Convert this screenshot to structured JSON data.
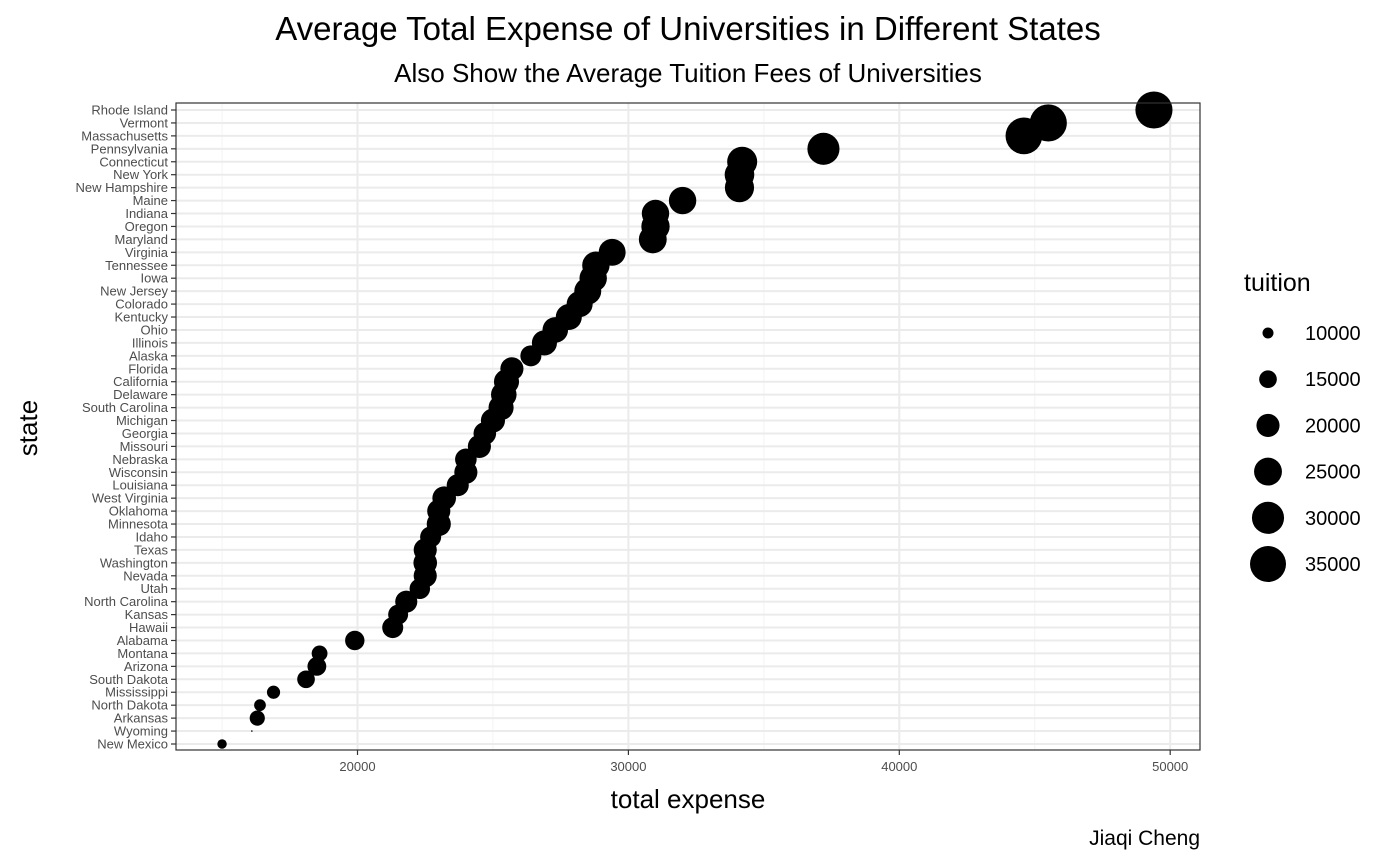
{
  "chart_data": {
    "type": "scatter",
    "title": "Average Total Expense of Universities in Different States",
    "subtitle": "Also Show the Average Tuition Fees of Universities",
    "xlabel": "total expense",
    "ylabel": "state",
    "caption": "Jiaqi Cheng",
    "xlim": [
      13300,
      51100
    ],
    "x_ticks": [
      20000,
      30000,
      40000,
      50000
    ],
    "x_tick_labels": [
      "20000",
      "30000",
      "40000",
      "50000"
    ],
    "grid": true,
    "size_legend": {
      "title": "tuition",
      "position": "right",
      "values": [
        10000,
        15000,
        20000,
        25000,
        30000,
        35000
      ],
      "labels": [
        "10000",
        "15000",
        "20000",
        "25000",
        "30000",
        "35000"
      ]
    },
    "points": [
      {
        "state": "New Mexico",
        "total_expense": 15000,
        "tuition": 9000
      },
      {
        "state": "Wyoming",
        "total_expense": 16100,
        "tuition": 5000
      },
      {
        "state": "Arkansas",
        "total_expense": 16300,
        "tuition": 13000
      },
      {
        "state": "North Dakota",
        "total_expense": 16400,
        "tuition": 10500
      },
      {
        "state": "Mississippi",
        "total_expense": 16900,
        "tuition": 11500
      },
      {
        "state": "South Dakota",
        "total_expense": 18100,
        "tuition": 15000
      },
      {
        "state": "Arizona",
        "total_expense": 18500,
        "tuition": 16000
      },
      {
        "state": "Montana",
        "total_expense": 18600,
        "tuition": 13500
      },
      {
        "state": "Alabama",
        "total_expense": 19900,
        "tuition": 16500
      },
      {
        "state": "Hawaii",
        "total_expense": 21300,
        "tuition": 18000
      },
      {
        "state": "Kansas",
        "total_expense": 21500,
        "tuition": 17000
      },
      {
        "state": "North Carolina",
        "total_expense": 21800,
        "tuition": 19000
      },
      {
        "state": "Utah",
        "total_expense": 22300,
        "tuition": 17500
      },
      {
        "state": "Nevada",
        "total_expense": 22500,
        "tuition": 20000
      },
      {
        "state": "Washington",
        "total_expense": 22500,
        "tuition": 20500
      },
      {
        "state": "Texas",
        "total_expense": 22500,
        "tuition": 20000
      },
      {
        "state": "Idaho",
        "total_expense": 22700,
        "tuition": 18000
      },
      {
        "state": "Minnesota",
        "total_expense": 23000,
        "tuition": 21000
      },
      {
        "state": "Oklahoma",
        "total_expense": 23000,
        "tuition": 20000
      },
      {
        "state": "West Virginia",
        "total_expense": 23200,
        "tuition": 20500
      },
      {
        "state": "Louisiana",
        "total_expense": 23700,
        "tuition": 19000
      },
      {
        "state": "Wisconsin",
        "total_expense": 24000,
        "tuition": 20000
      },
      {
        "state": "Nebraska",
        "total_expense": 24000,
        "tuition": 18500
      },
      {
        "state": "Missouri",
        "total_expense": 24500,
        "tuition": 20000
      },
      {
        "state": "Georgia",
        "total_expense": 24700,
        "tuition": 19500
      },
      {
        "state": "Michigan",
        "total_expense": 25000,
        "tuition": 21000
      },
      {
        "state": "South Carolina",
        "total_expense": 25300,
        "tuition": 22000
      },
      {
        "state": "Delaware",
        "total_expense": 25400,
        "tuition": 22500
      },
      {
        "state": "California",
        "total_expense": 25500,
        "tuition": 22000
      },
      {
        "state": "Florida",
        "total_expense": 25700,
        "tuition": 20000
      },
      {
        "state": "Alaska",
        "total_expense": 26400,
        "tuition": 18000
      },
      {
        "state": "Illinois",
        "total_expense": 26900,
        "tuition": 22000
      },
      {
        "state": "Ohio",
        "total_expense": 27300,
        "tuition": 22500
      },
      {
        "state": "Kentucky",
        "total_expense": 27800,
        "tuition": 23000
      },
      {
        "state": "Colorado",
        "total_expense": 28200,
        "tuition": 23000
      },
      {
        "state": "New Jersey",
        "total_expense": 28500,
        "tuition": 24000
      },
      {
        "state": "Iowa",
        "total_expense": 28700,
        "tuition": 24500
      },
      {
        "state": "Tennessee",
        "total_expense": 28800,
        "tuition": 24500
      },
      {
        "state": "Virginia",
        "total_expense": 29400,
        "tuition": 24000
      },
      {
        "state": "Maryland",
        "total_expense": 30900,
        "tuition": 25000
      },
      {
        "state": "Oregon",
        "total_expense": 31000,
        "tuition": 25500
      },
      {
        "state": "Indiana",
        "total_expense": 31000,
        "tuition": 24500
      },
      {
        "state": "Maine",
        "total_expense": 32000,
        "tuition": 24500
      },
      {
        "state": "New Hampshire",
        "total_expense": 34100,
        "tuition": 26500
      },
      {
        "state": "New York",
        "total_expense": 34100,
        "tuition": 27000
      },
      {
        "state": "Connecticut",
        "total_expense": 34200,
        "tuition": 27500
      },
      {
        "state": "Pennsylvania",
        "total_expense": 37200,
        "tuition": 30000
      },
      {
        "state": "Massachusetts",
        "total_expense": 44600,
        "tuition": 36000
      },
      {
        "state": "Vermont",
        "total_expense": 45500,
        "tuition": 36500
      },
      {
        "state": "Rhode Island",
        "total_expense": 49400,
        "tuition": 36500
      }
    ]
  },
  "colors": {
    "point": "#000000",
    "grid_major": "#ebebeb",
    "grid_minor": "#f5f5f5",
    "panel_border": "#333333",
    "tick_text": "#4d4d4d"
  }
}
